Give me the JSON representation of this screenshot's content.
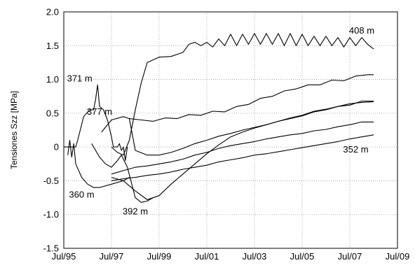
{
  "chart_data": {
    "type": "line",
    "title": "",
    "xlabel": "",
    "ylabel": "Tensiones Szz [MPa]",
    "grid": true,
    "legend": "none",
    "xlim": [
      "1995-07",
      "2009-07"
    ],
    "ylim": [
      -1.5,
      2.0
    ],
    "x_ticks": [
      {
        "date": "1995-07",
        "label": "Jul/95"
      },
      {
        "date": "1997-07",
        "label": "Jul/97"
      },
      {
        "date": "1999-07",
        "label": "Jul/99"
      },
      {
        "date": "2001-07",
        "label": "Jul/01"
      },
      {
        "date": "2003-07",
        "label": "Jul/03"
      },
      {
        "date": "2005-07",
        "label": "Jul/05"
      },
      {
        "date": "2007-07",
        "label": "Jul/07"
      },
      {
        "date": "2009-07",
        "label": "Jul/09"
      }
    ],
    "y_ticks": [
      {
        "value": 2.0,
        "label": "2.0"
      },
      {
        "value": 1.5,
        "label": "1.5"
      },
      {
        "value": 1.0,
        "label": "1.0"
      },
      {
        "value": 0.5,
        "label": "0.5"
      },
      {
        "value": 0.0,
        "label": "0"
      },
      {
        "value": -0.5,
        "label": "-0.5"
      },
      {
        "value": -1.0,
        "label": "-1.0"
      },
      {
        "value": -1.5,
        "label": "-1.5"
      }
    ],
    "series": [
      {
        "name": "408 m",
        "label_at": {
          "x": "2008-01",
          "y": 1.68
        },
        "points": [
          [
            "1997-07",
            0.0
          ],
          [
            "1997-10",
            -0.08
          ],
          [
            "1998-01",
            -0.12
          ],
          [
            "1998-04",
            0.1
          ],
          [
            "1998-07",
            0.55
          ],
          [
            "1998-10",
            0.95
          ],
          [
            "1999-01",
            1.25
          ],
          [
            "1999-07",
            1.33
          ],
          [
            "2000-01",
            1.34
          ],
          [
            "2000-07",
            1.4
          ],
          [
            "2000-10",
            1.52
          ],
          [
            "2001-01",
            1.55
          ],
          [
            "2001-04",
            1.5
          ],
          [
            "2001-07",
            1.55
          ],
          [
            "2001-10",
            1.48
          ],
          [
            "2002-01",
            1.6
          ],
          [
            "2002-04",
            1.5
          ],
          [
            "2002-07",
            1.67
          ],
          [
            "2002-10",
            1.5
          ],
          [
            "2003-01",
            1.67
          ],
          [
            "2003-04",
            1.52
          ],
          [
            "2003-07",
            1.68
          ],
          [
            "2003-10",
            1.52
          ],
          [
            "2004-01",
            1.68
          ],
          [
            "2004-04",
            1.52
          ],
          [
            "2004-07",
            1.68
          ],
          [
            "2004-10",
            1.5
          ],
          [
            "2005-01",
            1.68
          ],
          [
            "2005-04",
            1.5
          ],
          [
            "2005-07",
            1.67
          ],
          [
            "2005-10",
            1.5
          ],
          [
            "2006-01",
            1.64
          ],
          [
            "2006-04",
            1.5
          ],
          [
            "2006-07",
            1.64
          ],
          [
            "2006-10",
            1.5
          ],
          [
            "2007-01",
            1.62
          ],
          [
            "2007-04",
            1.48
          ],
          [
            "2007-07",
            1.62
          ],
          [
            "2007-10",
            1.5
          ],
          [
            "2008-01",
            1.62
          ],
          [
            "2008-04",
            1.52
          ],
          [
            "2008-07",
            1.45
          ]
        ]
      },
      {
        "name": "",
        "points": [
          [
            "1998-04",
            0.42
          ],
          [
            "1998-10",
            0.4
          ],
          [
            "1999-04",
            0.38
          ],
          [
            "1999-10",
            0.43
          ],
          [
            "2000-04",
            0.42
          ],
          [
            "2000-10",
            0.48
          ],
          [
            "2001-04",
            0.47
          ],
          [
            "2001-10",
            0.53
          ],
          [
            "2002-04",
            0.52
          ],
          [
            "2002-10",
            0.6
          ],
          [
            "2003-04",
            0.63
          ],
          [
            "2003-10",
            0.72
          ],
          [
            "2004-04",
            0.75
          ],
          [
            "2004-10",
            0.83
          ],
          [
            "2005-04",
            0.86
          ],
          [
            "2005-10",
            0.92
          ],
          [
            "2006-04",
            0.92
          ],
          [
            "2006-10",
            0.99
          ],
          [
            "2007-04",
            0.98
          ],
          [
            "2007-10",
            1.05
          ],
          [
            "2008-04",
            1.07
          ],
          [
            "2008-07",
            1.07
          ]
        ]
      },
      {
        "name": "377 m",
        "label_at": {
          "x": "1997-01",
          "y": 0.48
        },
        "points": [
          [
            "1997-02",
            0.22
          ],
          [
            "1997-07",
            0.4
          ],
          [
            "1998-01",
            0.45
          ],
          [
            "1998-04",
            0.42
          ],
          [
            "1998-07",
            -0.05
          ],
          [
            "1999-01",
            -0.12
          ],
          [
            "1999-07",
            -0.12
          ],
          [
            "2000-01",
            -0.08
          ],
          [
            "2000-07",
            -0.02
          ],
          [
            "2001-01",
            0.05
          ],
          [
            "2001-07",
            0.1
          ],
          [
            "2002-01",
            0.16
          ],
          [
            "2002-07",
            0.2
          ],
          [
            "2003-01",
            0.25
          ],
          [
            "2003-07",
            0.29
          ],
          [
            "2004-01",
            0.33
          ],
          [
            "2004-07",
            0.38
          ],
          [
            "2005-01",
            0.42
          ],
          [
            "2005-07",
            0.46
          ],
          [
            "2006-01",
            0.52
          ],
          [
            "2006-07",
            0.55
          ],
          [
            "2007-01",
            0.6
          ],
          [
            "2007-07",
            0.62
          ],
          [
            "2008-01",
            0.68
          ],
          [
            "2008-07",
            0.68
          ]
        ]
      },
      {
        "name": "",
        "points": [
          [
            "1997-07",
            -0.45
          ],
          [
            "1998-01",
            -0.5
          ],
          [
            "1998-07",
            -0.65
          ],
          [
            "1999-01",
            -0.78
          ],
          [
            "1999-07",
            -0.72
          ],
          [
            "2000-01",
            -0.55
          ],
          [
            "2000-07",
            -0.4
          ],
          [
            "2001-01",
            -0.25
          ],
          [
            "2001-07",
            -0.1
          ],
          [
            "2002-01",
            0.03
          ],
          [
            "2002-07",
            0.15
          ],
          [
            "2003-01",
            0.22
          ],
          [
            "2003-07",
            0.28
          ],
          [
            "2004-01",
            0.33
          ],
          [
            "2004-07",
            0.38
          ],
          [
            "2005-01",
            0.43
          ],
          [
            "2005-07",
            0.47
          ],
          [
            "2006-01",
            0.53
          ],
          [
            "2006-07",
            0.56
          ],
          [
            "2007-01",
            0.6
          ],
          [
            "2007-07",
            0.64
          ],
          [
            "2008-01",
            0.66
          ],
          [
            "2008-07",
            0.67
          ]
        ]
      },
      {
        "name": "",
        "points": [
          [
            "1997-07",
            -0.4
          ],
          [
            "1998-01",
            -0.35
          ],
          [
            "1998-07",
            -0.3
          ],
          [
            "1999-01",
            -0.28
          ],
          [
            "1999-07",
            -0.25
          ],
          [
            "2000-01",
            -0.22
          ],
          [
            "2000-07",
            -0.18
          ],
          [
            "2001-01",
            -0.12
          ],
          [
            "2001-07",
            -0.08
          ],
          [
            "2002-01",
            -0.02
          ],
          [
            "2002-07",
            0.02
          ],
          [
            "2003-01",
            0.05
          ],
          [
            "2003-07",
            0.08
          ],
          [
            "2004-01",
            0.12
          ],
          [
            "2004-07",
            0.15
          ],
          [
            "2005-01",
            0.18
          ],
          [
            "2005-07",
            0.2
          ],
          [
            "2006-01",
            0.24
          ],
          [
            "2006-07",
            0.26
          ],
          [
            "2007-01",
            0.3
          ],
          [
            "2007-07",
            0.33
          ],
          [
            "2008-01",
            0.37
          ],
          [
            "2008-07",
            0.37
          ]
        ]
      },
      {
        "name": "352 m",
        "label_at": {
          "x": "2007-10",
          "y": -0.08
        },
        "points": [
          [
            "1997-07",
            -0.5
          ],
          [
            "1998-01",
            -0.47
          ],
          [
            "1998-07",
            -0.45
          ],
          [
            "1999-01",
            -0.42
          ],
          [
            "1999-07",
            -0.4
          ],
          [
            "2000-01",
            -0.37
          ],
          [
            "2000-07",
            -0.33
          ],
          [
            "2001-01",
            -0.3
          ],
          [
            "2001-07",
            -0.27
          ],
          [
            "2002-01",
            -0.22
          ],
          [
            "2002-07",
            -0.19
          ],
          [
            "2003-01",
            -0.16
          ],
          [
            "2003-07",
            -0.12
          ],
          [
            "2004-01",
            -0.1
          ],
          [
            "2004-07",
            -0.07
          ],
          [
            "2005-01",
            -0.04
          ],
          [
            "2005-07",
            -0.01
          ],
          [
            "2006-01",
            0.02
          ],
          [
            "2006-07",
            0.05
          ],
          [
            "2007-01",
            0.08
          ],
          [
            "2007-07",
            0.12
          ],
          [
            "2008-01",
            0.15
          ],
          [
            "2008-07",
            0.18
          ]
        ]
      },
      {
        "name": "371 m",
        "label_at": {
          "x": "1996-03",
          "y": 0.97
        },
        "points": [
          [
            "1995-07",
            0.0
          ],
          [
            "1996-01",
            0.0
          ],
          [
            "1996-02",
            0.1
          ],
          [
            "1996-05",
            0.45
          ],
          [
            "1996-08",
            0.55
          ],
          [
            "1996-10",
            0.55
          ],
          [
            "1996-11",
            0.7
          ],
          [
            "1996-12",
            0.92
          ],
          [
            "1997-01",
            0.6
          ],
          [
            "1997-03",
            0.55
          ],
          [
            "1997-05",
            0.4
          ],
          [
            "1997-07",
            0.15
          ],
          [
            "1997-08",
            0.0
          ],
          [
            "1997-10",
            0.0
          ],
          [
            "1997-11",
            0.05
          ],
          [
            "1997-12",
            -0.05
          ],
          [
            "1998-01",
            0.0
          ],
          [
            "1998-02",
            -0.2
          ],
          [
            "1998-03",
            0.0
          ]
        ]
      },
      {
        "name": "360 m",
        "label_at": {
          "x": "1996-04",
          "y": -0.75
        },
        "points": [
          [
            "1995-09",
            -0.12
          ],
          [
            "1995-10",
            0.1
          ],
          [
            "1995-11",
            -0.15
          ],
          [
            "1995-12",
            0.05
          ],
          [
            "1996-01",
            -0.25
          ],
          [
            "1996-04",
            -0.45
          ],
          [
            "1996-07",
            -0.55
          ],
          [
            "1996-10",
            -0.6
          ],
          [
            "1997-01",
            -0.6
          ],
          [
            "1997-07",
            -0.55
          ],
          [
            "1998-01",
            -0.5
          ],
          [
            "1998-04",
            -0.45
          ]
        ]
      },
      {
        "name": "392 m",
        "label_at": {
          "x": "1998-07",
          "y": -1.0
        },
        "points": [
          [
            "1996-09",
            0.05
          ],
          [
            "1997-01",
            -0.15
          ],
          [
            "1997-04",
            -0.25
          ],
          [
            "1997-07",
            -0.3
          ],
          [
            "1997-10",
            -0.2
          ],
          [
            "1997-12",
            -0.12
          ],
          [
            "1998-03",
            -0.3
          ],
          [
            "1998-07",
            -0.75
          ],
          [
            "1998-10",
            -0.82
          ],
          [
            "1999-01",
            -0.8
          ],
          [
            "1999-04",
            -0.75
          ]
        ]
      }
    ]
  }
}
